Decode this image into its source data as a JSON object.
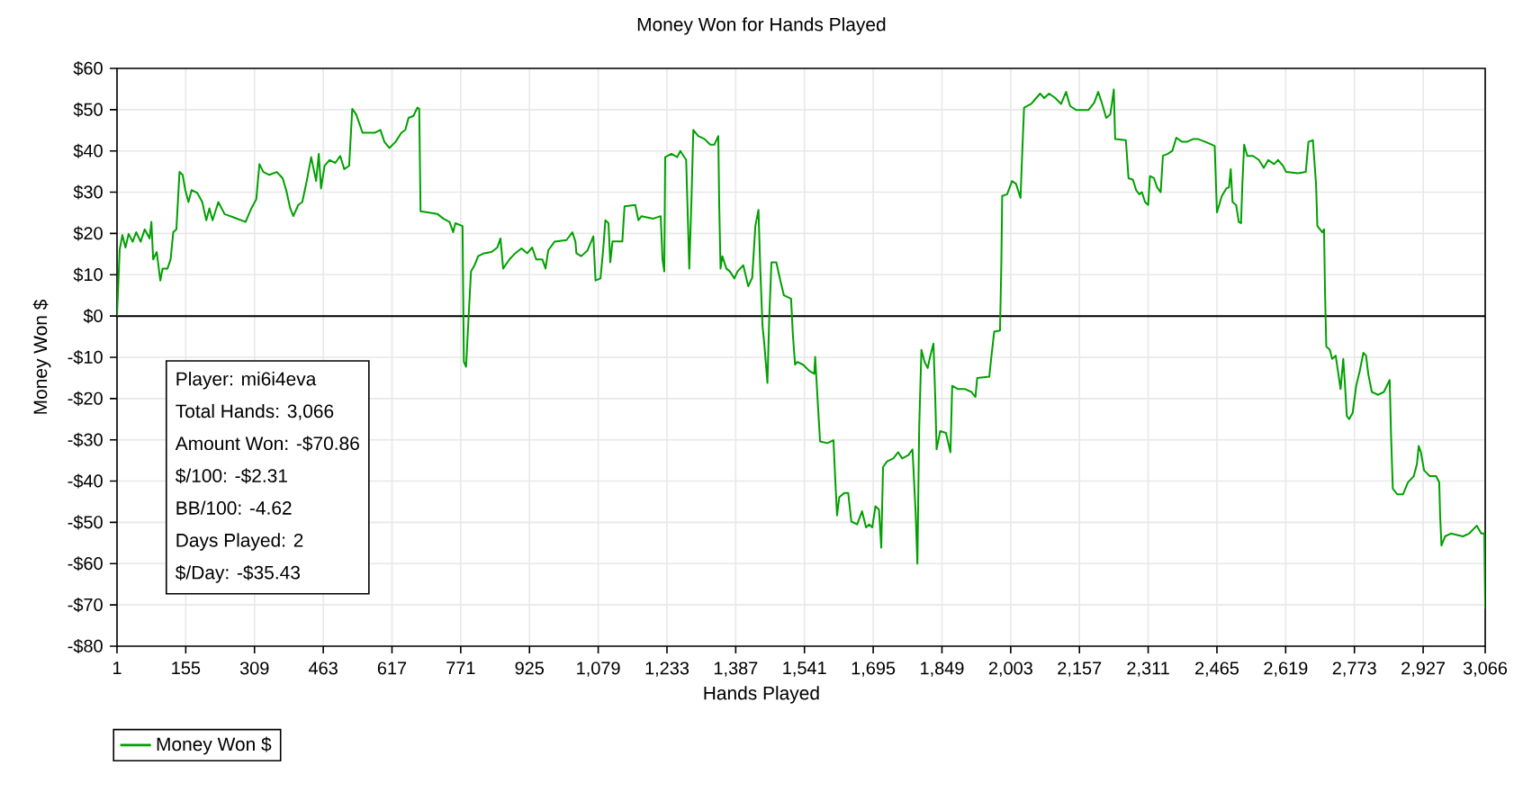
{
  "chart_data": {
    "type": "line",
    "title": "Money Won for Hands Played",
    "xlabel": "Hands Played",
    "ylabel": "Money Won $",
    "xlim": [
      1,
      3066
    ],
    "ylim": [
      -80,
      60
    ],
    "xticks": [
      1,
      155,
      309,
      463,
      617,
      771,
      925,
      {
        "value": 1079,
        "label": "1,079"
      },
      {
        "value": 1233,
        "label": "1,233"
      },
      {
        "value": 1387,
        "label": "1,387"
      },
      {
        "value": 1541,
        "label": "1,541"
      },
      {
        "value": 1695,
        "label": "1,695"
      },
      {
        "value": 1849,
        "label": "1,849"
      },
      {
        "value": 2003,
        "label": "2,003"
      },
      {
        "value": 2157,
        "label": "2,157"
      },
      {
        "value": 2311,
        "label": "2,311"
      },
      {
        "value": 2465,
        "label": "2,465"
      },
      {
        "value": 2619,
        "label": "2,619"
      },
      {
        "value": 2773,
        "label": "2,773"
      },
      {
        "value": 2927,
        "label": "2,927"
      },
      {
        "value": 3066,
        "label": "3,066"
      }
    ],
    "yticks": [
      {
        "value": -80,
        "label": "-$80"
      },
      {
        "value": -70,
        "label": "-$70"
      },
      {
        "value": -60,
        "label": "-$60"
      },
      {
        "value": -50,
        "label": "-$50"
      },
      {
        "value": -40,
        "label": "-$40"
      },
      {
        "value": -30,
        "label": "-$30"
      },
      {
        "value": -20,
        "label": "-$20"
      },
      {
        "value": -10,
        "label": "-$10"
      },
      {
        "value": 0,
        "label": "$0"
      },
      {
        "value": 10,
        "label": "$10"
      },
      {
        "value": 20,
        "label": "$20"
      },
      {
        "value": 30,
        "label": "$30"
      },
      {
        "value": 40,
        "label": "$40"
      },
      {
        "value": 50,
        "label": "$50"
      },
      {
        "value": 60,
        "label": "$60"
      }
    ],
    "grid": true,
    "legend": "bottom left",
    "ref_lines": [
      {
        "axis": "y",
        "value": 0,
        "color": "#000000"
      }
    ],
    "annotations": [
      "Player: mi6i4eva",
      "Total Hands: 3,066",
      "Amount Won: -$70.86",
      "$/100: -$2.31",
      "BB/100: -4.62",
      "Days Played: 2",
      "$/Day: -$35.43"
    ],
    "x": [
      1,
      7,
      13,
      20,
      27,
      36,
      44,
      54,
      63,
      74,
      78,
      82,
      90,
      98,
      103,
      114,
      121,
      127,
      134,
      141,
      148,
      154,
      161,
      168,
      181,
      192,
      201,
      208,
      215,
      228,
      242,
      262,
      289,
      302,
      313,
      320,
      329,
      342,
      359,
      372,
      380,
      389,
      396,
      407,
      416,
      426,
      436,
      447,
      453,
      458,
      466,
      477,
      490,
      501,
      510,
      521,
      528,
      537,
      551,
      578,
      591,
      600,
      611,
      625,
      638,
      647,
      654,
      665,
      674,
      678,
      681,
      719,
      732,
      746,
      754,
      759,
      775,
      778,
      783,
      789,
      794,
      802,
      810,
      823,
      840,
      853,
      860,
      866,
      880,
      893,
      907,
      920,
      931,
      940,
      954,
      961,
      967,
      981,
      1008,
      1021,
      1028,
      1030,
      1041,
      1055,
      1068,
      1073,
      1084,
      1090,
      1095,
      1102,
      1106,
      1111,
      1133,
      1138,
      1162,
      1169,
      1176,
      1202,
      1219,
      1223,
      1227,
      1229,
      1243,
      1256,
      1263,
      1276,
      1283,
      1288,
      1292,
      1303,
      1317,
      1330,
      1339,
      1348,
      1350,
      1353,
      1357,
      1366,
      1374,
      1384,
      1391,
      1404,
      1415,
      1424,
      1431,
      1438,
      1442,
      1447,
      1451,
      1458,
      1462,
      1467,
      1478,
      1487,
      1495,
      1511,
      1515,
      1520,
      1525,
      1538,
      1552,
      1563,
      1565,
      1571,
      1576,
      1592,
      1606,
      1610,
      1614,
      1619,
      1630,
      1639,
      1646,
      1659,
      1670,
      1679,
      1686,
      1693,
      1700,
      1708,
      1713,
      1717,
      1726,
      1740,
      1751,
      1760,
      1774,
      1783,
      1790,
      1794,
      1798,
      1803,
      1810,
      1817,
      1823,
      1830,
      1834,
      1837,
      1845,
      1858,
      1868,
      1872,
      1885,
      1901,
      1915,
      1924,
      1928,
      1955,
      1960,
      1966,
      1979,
      1982,
      1984,
      1995,
      2006,
      2015,
      2025,
      2029,
      2033,
      2049,
      2060,
      2069,
      2078,
      2089,
      2103,
      2116,
      2127,
      2136,
      2150,
      2177,
      2190,
      2199,
      2207,
      2217,
      2226,
      2230,
      2234,
      2237,
      2261,
      2267,
      2277,
      2284,
      2291,
      2297,
      2304,
      2311,
      2315,
      2324,
      2331,
      2339,
      2344,
      2355,
      2365,
      2374,
      2387,
      2398,
      2412,
      2422,
      2439,
      2460,
      2465,
      2476,
      2486,
      2492,
      2496,
      2500,
      2508,
      2514,
      2519,
      2522,
      2526,
      2533,
      2546,
      2559,
      2570,
      2580,
      2593,
      2602,
      2613,
      2620,
      2647,
      2664,
      2670,
      2680,
      2687,
      2690,
      2701,
      2705,
      2707,
      2710,
      2718,
      2723,
      2731,
      2737,
      2742,
      2748,
      2752,
      2756,
      2761,
      2769,
      2777,
      2785,
      2793,
      2799,
      2804,
      2812,
      2826,
      2839,
      2852,
      2855,
      2859,
      2869,
      2882,
      2893,
      2906,
      2913,
      2917,
      2922,
      2929,
      2942,
      2956,
      2963,
      2965,
      2968,
      2976,
      2989,
      3016,
      3030,
      3047,
      3057,
      3064,
      3066
    ],
    "series": [
      {
        "name": "Money Won $",
        "color": "#00a000",
        "values": [
          0,
          16.1,
          19.6,
          16.6,
          19.9,
          18.0,
          20.3,
          18.0,
          21.0,
          18.8,
          22.8,
          13.7,
          15.5,
          8.6,
          11.5,
          11.5,
          13.7,
          20.3,
          21.0,
          34.9,
          34.2,
          30.5,
          27.6,
          30.5,
          29.8,
          27.6,
          23.2,
          26.1,
          23.2,
          27.6,
          24.7,
          23.9,
          22.8,
          26.1,
          28.3,
          36.8,
          34.9,
          34.2,
          34.9,
          33.4,
          30.5,
          26.1,
          24.2,
          26.9,
          27.6,
          32.7,
          38.5,
          32.7,
          39.3,
          30.9,
          36.4,
          37.8,
          37.1,
          38.8,
          35.6,
          36.4,
          50.2,
          48.8,
          44.4,
          44.4,
          45.1,
          42.2,
          40.7,
          42.2,
          44.4,
          45.1,
          48.0,
          48.5,
          50.5,
          50.2,
          25.4,
          24.7,
          23.6,
          22.8,
          20.3,
          22.5,
          21.8,
          -11.1,
          -12.3,
          0.6,
          10.8,
          12.3,
          14.5,
          15.2,
          15.5,
          16.6,
          18.8,
          11.5,
          13.7,
          15.2,
          16.4,
          15.2,
          16.6,
          13.7,
          13.7,
          11.5,
          15.9,
          18.0,
          18.4,
          20.3,
          18.0,
          15.2,
          14.5,
          15.9,
          19.3,
          8.6,
          9.1,
          15.9,
          23.2,
          22.5,
          13.0,
          18.1,
          18.1,
          26.6,
          26.9,
          23.2,
          24.2,
          23.6,
          24.2,
          13.7,
          10.8,
          38.5,
          39.3,
          38.5,
          40.0,
          37.8,
          11.5,
          28.6,
          45.1,
          43.6,
          42.9,
          41.5,
          41.5,
          43.6,
          27.2,
          11.5,
          14.5,
          11.5,
          10.8,
          9.1,
          10.8,
          12.3,
          7.2,
          9.3,
          21.8,
          25.7,
          11.5,
          -2.3,
          -6.7,
          -16.2,
          -0.9,
          13.0,
          13.0,
          8.6,
          5.0,
          4.2,
          -4.5,
          -11.8,
          -11.1,
          -11.8,
          -13.3,
          -14.0,
          -9.9,
          -21.3,
          -30.4,
          -30.8,
          -30.1,
          -39.6,
          -48.3,
          -43.9,
          -42.9,
          -42.9,
          -49.8,
          -50.5,
          -47.3,
          -51.2,
          -50.5,
          -51.2,
          -46.1,
          -46.9,
          -56.1,
          -36.6,
          -35.2,
          -34.5,
          -33.0,
          -34.5,
          -33.7,
          -32.3,
          -47.6,
          -60.0,
          -27.2,
          -8.2,
          -11.1,
          -12.6,
          -9.6,
          -6.7,
          -19.9,
          -32.3,
          -27.9,
          -28.3,
          -33.0,
          -16.9,
          -17.7,
          -17.7,
          -18.4,
          -19.6,
          -15.0,
          -14.7,
          -9.6,
          -3.8,
          -3.5,
          12.3,
          29.1,
          29.5,
          32.7,
          32.0,
          28.6,
          40.0,
          50.5,
          51.4,
          52.8,
          53.9,
          52.8,
          53.9,
          52.8,
          51.4,
          54.3,
          50.9,
          49.9,
          49.9,
          51.7,
          54.3,
          51.7,
          48.0,
          48.8,
          51.7,
          54.9,
          42.9,
          42.6,
          33.4,
          33.0,
          30.5,
          29.5,
          30.0,
          27.6,
          26.9,
          33.9,
          33.4,
          31.2,
          30.0,
          38.8,
          39.3,
          40.0,
          43.2,
          42.2,
          42.2,
          42.9,
          42.9,
          42.2,
          41.2,
          25.1,
          29.1,
          30.9,
          31.2,
          35.6,
          27.6,
          26.9,
          22.8,
          22.5,
          32.0,
          41.5,
          38.8,
          38.8,
          37.8,
          35.9,
          37.8,
          36.8,
          37.8,
          36.4,
          34.9,
          34.6,
          34.9,
          42.2,
          42.6,
          32.0,
          21.8,
          20.3,
          21.0,
          6.4,
          -7.4,
          -8.2,
          -10.4,
          -9.6,
          -14.0,
          -17.7,
          -10.4,
          -16.9,
          -24.2,
          -25.0,
          -23.5,
          -16.9,
          -13.3,
          -8.9,
          -9.6,
          -14.0,
          -18.4,
          -19.1,
          -18.4,
          -15.5,
          -28.6,
          -41.8,
          -43.2,
          -43.2,
          -40.3,
          -38.8,
          -35.9,
          -31.5,
          -33.0,
          -37.4,
          -38.8,
          -38.8,
          -40.3,
          -48.3,
          -55.6,
          -53.4,
          -52.7,
          -53.4,
          -52.7,
          -50.8,
          -52.7,
          -52.7,
          -70.9
        ]
      }
    ]
  }
}
